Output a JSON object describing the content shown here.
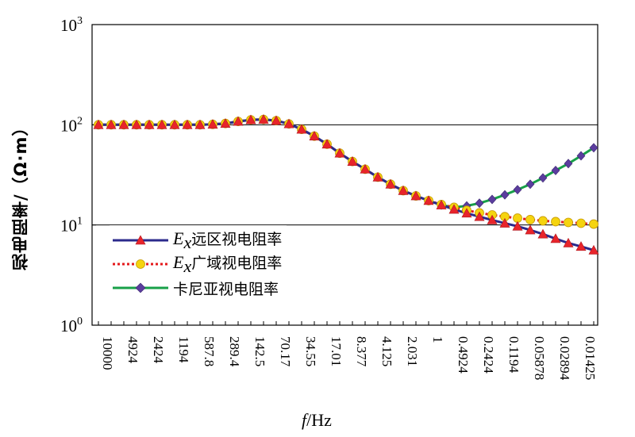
{
  "chart_data": {
    "type": "line",
    "ylabel": "视电阻率/（Ω·m）",
    "xlabel_italic": "f",
    "xlabel_rest": "/Hz",
    "y_scale": "log",
    "ylim": [
      1,
      1000
    ],
    "y_ticks": [
      {
        "value": 1,
        "base": "10",
        "exp": "0"
      },
      {
        "value": 10,
        "base": "10",
        "exp": "1"
      },
      {
        "value": 100,
        "base": "10",
        "exp": "2"
      },
      {
        "value": 1000,
        "base": "10",
        "exp": "3"
      }
    ],
    "x_tick_labels": [
      "10000",
      "4924",
      "2424",
      "1194",
      "587.8",
      "289.4",
      "142.5",
      "70.17",
      "34.55",
      "17.01",
      "8.377",
      "4.125",
      "2.031",
      "1",
      "0.4924",
      "0.2424",
      "0.1194",
      "0.05878",
      "0.02894",
      "0.01425"
    ],
    "x": [
      10000,
      7017,
      4924,
      3455,
      2424,
      1701,
      1194,
      837.7,
      587.8,
      412.5,
      289.4,
      203.1,
      142.5,
      100,
      70.17,
      49.24,
      34.55,
      24.24,
      17.01,
      11.94,
      8.377,
      5.878,
      4.125,
      2.894,
      2.031,
      1.425,
      1,
      0.7017,
      0.4924,
      0.3455,
      0.2424,
      0.1701,
      0.1194,
      0.08377,
      0.05878,
      0.04125,
      0.02894,
      0.02031,
      0.01425,
      0.01
    ],
    "grid": "horizontal",
    "legend_position": "lower-left",
    "series": [
      {
        "name_italic": "E",
        "name_sub": "x",
        "name_rest": "远区视电阻率",
        "line_color": "#2b2a8c",
        "marker": "triangle",
        "marker_color": "#e8242b",
        "line_style": "solid",
        "values": [
          100,
          100,
          100,
          100,
          100,
          100,
          100,
          100,
          100,
          101,
          103,
          108,
          112,
          113,
          110,
          102,
          90,
          77,
          64,
          52,
          43,
          36,
          30,
          25.5,
          22,
          19.5,
          17.5,
          15.8,
          14.3,
          13.1,
          12.1,
          11.2,
          10.4,
          9.7,
          8.9,
          8.1,
          7.3,
          6.6,
          6.1,
          5.6
        ]
      },
      {
        "name_italic": "E",
        "name_sub": "x",
        "name_rest": "广域视电阻率",
        "line_color": "#e41a1c",
        "marker": "circle",
        "marker_color": "#f5d40f",
        "line_style": "dotted",
        "values": [
          100,
          100,
          100,
          100,
          100,
          100,
          100,
          100,
          100,
          101,
          103,
          108,
          112,
          113,
          110,
          102,
          90,
          77,
          64,
          52,
          43,
          36,
          30,
          25.5,
          22,
          19.5,
          17.5,
          16,
          15,
          14,
          13.2,
          12.6,
          12.1,
          11.7,
          11.3,
          11,
          10.8,
          10.6,
          10.4,
          10.2
        ]
      },
      {
        "name": "卡尼亚视电阻率",
        "line_color": "#18a048",
        "marker": "diamond",
        "marker_color": "#5b3d9e",
        "line_style": "solid",
        "values": [
          100,
          100,
          100,
          100,
          100,
          100,
          100,
          100,
          100,
          101,
          103,
          108,
          112,
          113,
          110,
          102,
          90,
          77,
          64,
          52,
          43,
          36,
          30,
          25.5,
          22,
          19.5,
          17.5,
          15.8,
          15,
          15.5,
          16.5,
          18,
          20,
          22.5,
          25.5,
          29.5,
          35,
          41,
          49,
          59
        ]
      }
    ]
  }
}
